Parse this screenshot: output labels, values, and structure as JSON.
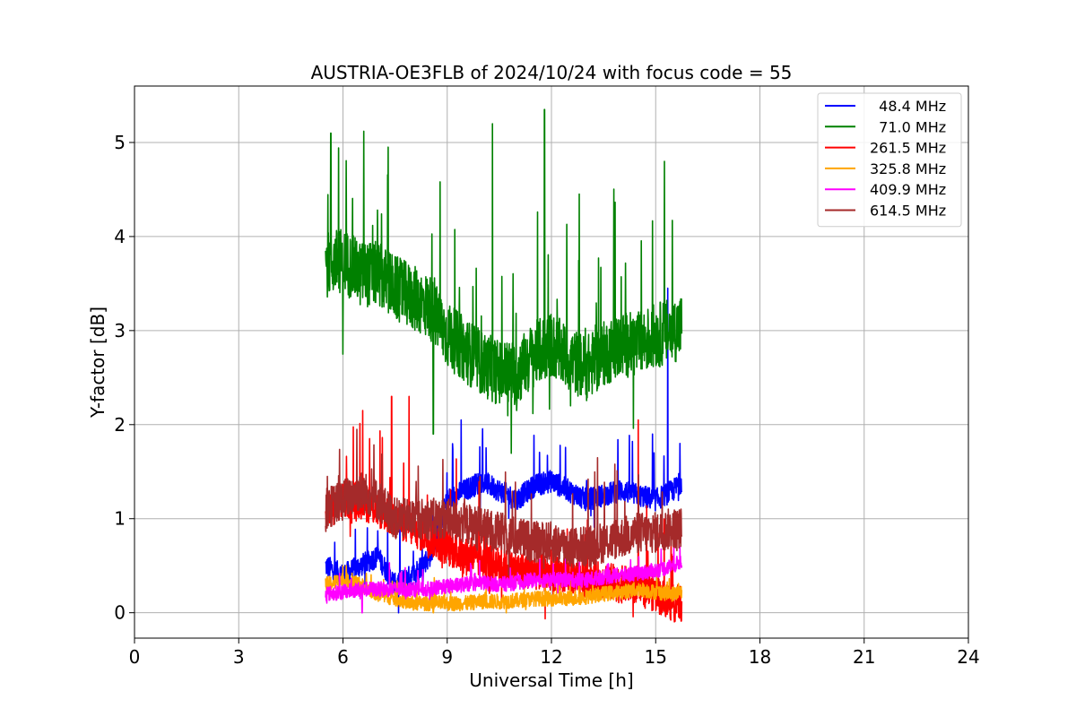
{
  "chart_data": {
    "type": "line",
    "title": "AUSTRIA-OE3FLB of 2024/10/24 with focus code = 55",
    "xlabel": "Universal Time [h]",
    "ylabel": "Y-factor [dB]",
    "xlim": [
      0,
      24
    ],
    "ylim": [
      -0.27,
      5.6
    ],
    "xticks": [
      0,
      3,
      6,
      9,
      12,
      15,
      18,
      21,
      24
    ],
    "yticks": [
      0,
      1,
      2,
      3,
      4,
      5
    ],
    "grid": true,
    "legend_position": "top-right",
    "series": [
      {
        "name": "48.4 MHz",
        "legend_label": "  48.4 MHz",
        "color": "#0000ff",
        "x": [
          5.5,
          6.0,
          6.5,
          7.0,
          7.5,
          8.0,
          8.5,
          9.0,
          9.5,
          10.0,
          10.5,
          11.0,
          11.5,
          12.0,
          12.5,
          13.0,
          13.5,
          14.0,
          14.5,
          15.0,
          15.5,
          15.75
        ],
        "y": [
          0.5,
          0.4,
          0.5,
          0.6,
          0.3,
          0.4,
          0.6,
          1.2,
          1.3,
          1.4,
          1.3,
          1.2,
          1.35,
          1.4,
          1.3,
          1.2,
          1.25,
          1.3,
          1.25,
          1.2,
          1.3,
          1.4
        ],
        "peaks": [
          [
            7.6,
            0.0
          ],
          [
            8.1,
            0.05
          ],
          [
            9.4,
            2.05
          ],
          [
            15.35,
            3.45
          ],
          [
            15.7,
            1.8
          ]
        ]
      },
      {
        "name": "71.0 MHz",
        "legend_label": "  71.0 MHz",
        "color": "#008000",
        "x": [
          5.5,
          6.0,
          6.5,
          7.0,
          7.5,
          8.0,
          8.5,
          9.0,
          9.5,
          10.0,
          10.5,
          11.0,
          11.5,
          12.0,
          12.5,
          13.0,
          13.5,
          14.0,
          14.5,
          15.0,
          15.5,
          15.75
        ],
        "y": [
          3.7,
          3.75,
          3.6,
          3.6,
          3.45,
          3.35,
          3.25,
          2.95,
          2.8,
          2.65,
          2.55,
          2.55,
          2.75,
          2.85,
          2.7,
          2.6,
          2.75,
          2.85,
          2.85,
          2.95,
          3.0,
          3.05
        ],
        "peaks": [
          [
            5.65,
            5.1
          ],
          [
            6.6,
            5.12
          ],
          [
            7.3,
            4.95
          ],
          [
            10.3,
            5.2
          ],
          [
            11.8,
            5.35
          ],
          [
            15.25,
            4.8
          ],
          [
            6.0,
            2.75
          ],
          [
            8.6,
            1.9
          ],
          [
            11.0,
            2.15
          ]
        ]
      },
      {
        "name": "261.5 MHz",
        "legend_label": "261.5 MHz",
        "color": "#ff0000",
        "x": [
          5.5,
          6.0,
          6.5,
          7.0,
          7.5,
          8.0,
          8.5,
          9.0,
          9.5,
          10.0,
          10.5,
          11.0,
          11.5,
          12.0,
          12.5,
          13.0,
          13.5,
          14.0,
          14.5,
          15.0,
          15.5,
          15.75
        ],
        "y": [
          1.1,
          1.2,
          1.2,
          1.1,
          1.0,
          0.9,
          0.8,
          0.7,
          0.6,
          0.55,
          0.5,
          0.45,
          0.45,
          0.4,
          0.4,
          0.35,
          0.35,
          0.3,
          0.3,
          0.2,
          0.1,
          0.1
        ],
        "peaks": [
          [
            7.4,
            2.3
          ],
          [
            7.9,
            2.3
          ],
          [
            14.5,
            2.05
          ],
          [
            15.6,
            0.0
          ]
        ]
      },
      {
        "name": "325.8 MHz",
        "legend_label": "325.8 MHz",
        "color": "#ffa500",
        "x": [
          5.5,
          6.0,
          6.5,
          7.0,
          7.5,
          8.0,
          8.5,
          9.0,
          9.5,
          10.0,
          10.5,
          11.0,
          11.5,
          12.0,
          12.5,
          13.0,
          13.5,
          14.0,
          14.5,
          15.0,
          15.5,
          15.75
        ],
        "y": [
          0.3,
          0.35,
          0.3,
          0.2,
          0.15,
          0.1,
          0.1,
          0.1,
          0.1,
          0.12,
          0.12,
          0.13,
          0.15,
          0.15,
          0.15,
          0.17,
          0.2,
          0.22,
          0.25,
          0.22,
          0.2,
          0.22
        ],
        "peaks": [
          [
            8.6,
            0.0
          ],
          [
            10.7,
            0.0
          ]
        ]
      },
      {
        "name": "409.9 MHz",
        "legend_label": "409.9 MHz",
        "color": "#ff00ff",
        "x": [
          5.5,
          6.0,
          6.5,
          7.0,
          7.5,
          8.0,
          8.5,
          9.0,
          9.5,
          10.0,
          10.5,
          11.0,
          11.5,
          12.0,
          12.5,
          13.0,
          13.5,
          14.0,
          14.5,
          15.0,
          15.5,
          15.75
        ],
        "y": [
          0.2,
          0.22,
          0.25,
          0.25,
          0.25,
          0.25,
          0.25,
          0.28,
          0.3,
          0.32,
          0.3,
          0.32,
          0.35,
          0.35,
          0.35,
          0.35,
          0.38,
          0.4,
          0.42,
          0.45,
          0.5,
          0.55
        ],
        "peaks": [
          [
            6.55,
            0.0
          ],
          [
            15.7,
            0.7
          ]
        ]
      },
      {
        "name": "614.5 MHz",
        "legend_label": "614.5 MHz",
        "color": "#a52a2a",
        "x": [
          5.5,
          6.0,
          6.5,
          7.0,
          7.5,
          8.0,
          8.5,
          9.0,
          9.5,
          10.0,
          10.5,
          11.0,
          11.5,
          12.0,
          12.5,
          13.0,
          13.5,
          14.0,
          14.5,
          15.0,
          15.5,
          15.75
        ],
        "y": [
          1.1,
          1.2,
          1.3,
          1.2,
          1.0,
          1.0,
          1.0,
          1.0,
          0.95,
          0.9,
          0.85,
          0.8,
          0.75,
          0.75,
          0.7,
          0.7,
          0.75,
          0.8,
          0.85,
          0.85,
          0.9,
          0.9
        ],
        "peaks": [
          [
            6.4,
            1.95
          ],
          [
            5.55,
            1.45
          ]
        ]
      }
    ]
  }
}
